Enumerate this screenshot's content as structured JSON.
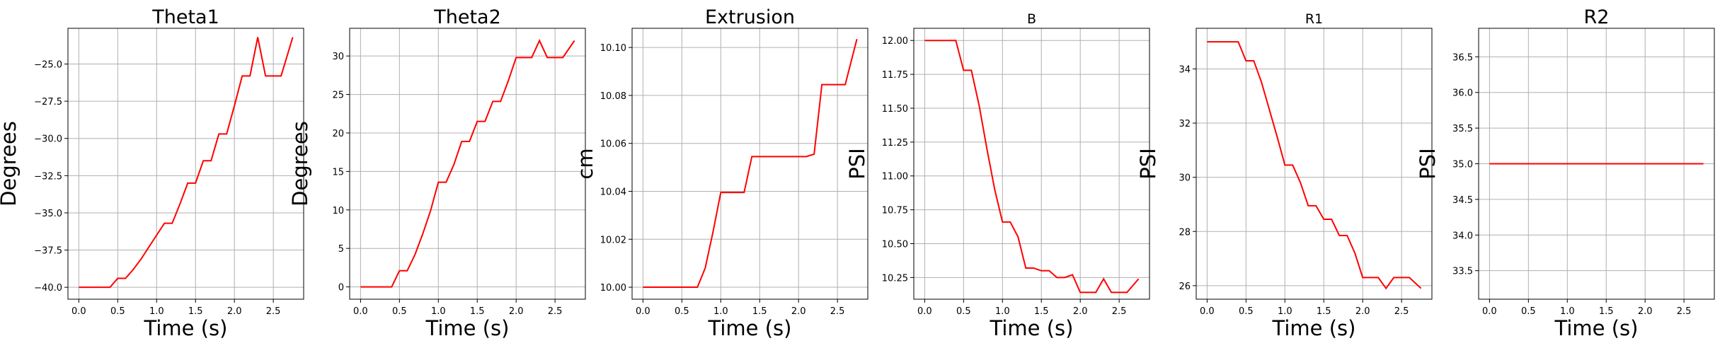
{
  "chart_data": [
    {
      "type": "line",
      "title": "Theta1",
      "xlabel": "Time (s)",
      "ylabel": "Degrees",
      "xlim": [
        -0.14,
        2.89
      ],
      "ylim": [
        -40.8,
        -22.6
      ],
      "xticks": [
        0.0,
        0.5,
        1.0,
        1.5,
        2.0,
        2.5
      ],
      "xtick_labels": [
        "0.0",
        "0.5",
        "1.0",
        "1.5",
        "2.0",
        "2.5"
      ],
      "yticks": [
        -40.0,
        -37.5,
        -35.0,
        -32.5,
        -30.0,
        -27.5,
        -25.0
      ],
      "ytick_labels": [
        "−40.0",
        "−37.5",
        "−35.0",
        "−32.5",
        "−30.0",
        "−27.5",
        "−25.0"
      ],
      "grid": true,
      "color": "#ff0000",
      "x": [
        0.0,
        0.1,
        0.2,
        0.3,
        0.4,
        0.5,
        0.6,
        0.7,
        0.8,
        0.9,
        1.0,
        1.1,
        1.2,
        1.3,
        1.4,
        1.5,
        1.6,
        1.7,
        1.8,
        1.9,
        2.0,
        2.1,
        2.2,
        2.3,
        2.4,
        2.5,
        2.6,
        2.75
      ],
      "y": [
        -40.0,
        -40.0,
        -40.0,
        -40.0,
        -40.0,
        -39.4,
        -39.4,
        -38.8,
        -38.1,
        -37.3,
        -36.5,
        -35.7,
        -35.7,
        -34.4,
        -33.0,
        -33.0,
        -31.5,
        -31.5,
        -29.7,
        -29.7,
        -27.8,
        -25.8,
        -25.8,
        -23.2,
        -25.8,
        -25.8,
        -25.8,
        -23.2
      ]
    },
    {
      "type": "line",
      "title": "Theta2",
      "xlabel": "Time (s)",
      "ylabel": "Degrees",
      "xlim": [
        -0.14,
        2.89
      ],
      "ylim": [
        -1.6,
        33.6
      ],
      "xticks": [
        0.0,
        0.5,
        1.0,
        1.5,
        2.0,
        2.5
      ],
      "xtick_labels": [
        "0.0",
        "0.5",
        "1.0",
        "1.5",
        "2.0",
        "2.5"
      ],
      "yticks": [
        0,
        5,
        10,
        15,
        20,
        25,
        30
      ],
      "ytick_labels": [
        "0",
        "5",
        "10",
        "15",
        "20",
        "25",
        "30"
      ],
      "grid": true,
      "color": "#ff0000",
      "x": [
        0.0,
        0.1,
        0.2,
        0.3,
        0.4,
        0.5,
        0.6,
        0.7,
        0.8,
        0.9,
        1.0,
        1.1,
        1.2,
        1.3,
        1.4,
        1.5,
        1.6,
        1.7,
        1.8,
        1.9,
        2.0,
        2.1,
        2.2,
        2.3,
        2.4,
        2.5,
        2.6,
        2.75
      ],
      "y": [
        0.0,
        0.0,
        0.0,
        0.0,
        0.0,
        2.1,
        2.1,
        4.2,
        6.9,
        9.9,
        13.6,
        13.6,
        15.9,
        18.9,
        18.9,
        21.5,
        21.5,
        24.1,
        24.1,
        26.8,
        29.8,
        29.8,
        29.8,
        32.0,
        29.8,
        29.8,
        29.8,
        32.0
      ]
    },
    {
      "type": "line",
      "title": "Extrusion",
      "xlabel": "Time (s)",
      "ylabel": "cm",
      "xlim": [
        -0.14,
        2.89
      ],
      "ylim": [
        9.995,
        10.108
      ],
      "xticks": [
        0.0,
        0.5,
        1.0,
        1.5,
        2.0,
        2.5
      ],
      "xtick_labels": [
        "0.0",
        "0.5",
        "1.0",
        "1.5",
        "2.0",
        "2.5"
      ],
      "yticks": [
        10.0,
        10.02,
        10.04,
        10.06,
        10.08,
        10.1
      ],
      "ytick_labels": [
        "10.00",
        "10.02",
        "10.04",
        "10.06",
        "10.08",
        "10.10"
      ],
      "grid": true,
      "color": "#ff0000",
      "x": [
        0.0,
        0.1,
        0.2,
        0.3,
        0.4,
        0.5,
        0.6,
        0.7,
        0.8,
        0.9,
        1.0,
        1.1,
        1.2,
        1.3,
        1.4,
        1.5,
        1.6,
        1.7,
        1.8,
        1.9,
        2.0,
        2.1,
        2.2,
        2.3,
        2.4,
        2.5,
        2.6,
        2.75
      ],
      "y": [
        10.0,
        10.0,
        10.0,
        10.0,
        10.0,
        10.0,
        10.0,
        10.0,
        10.008,
        10.023,
        10.0395,
        10.0395,
        10.0395,
        10.0395,
        10.0545,
        10.0545,
        10.0545,
        10.0545,
        10.0545,
        10.0545,
        10.0545,
        10.0545,
        10.0555,
        10.0845,
        10.0845,
        10.0845,
        10.0845,
        10.1035
      ]
    },
    {
      "type": "line",
      "title": "B",
      "xlabel": "Time (s)",
      "ylabel": "PSI",
      "xlim": [
        -0.14,
        2.89
      ],
      "ylim": [
        10.09,
        12.09
      ],
      "xticks": [
        0.0,
        0.5,
        1.0,
        1.5,
        2.0,
        2.5
      ],
      "xtick_labels": [
        "0.0",
        "0.5",
        "1.0",
        "1.5",
        "2.0",
        "2.5"
      ],
      "yticks": [
        10.25,
        10.5,
        10.75,
        11.0,
        11.25,
        11.5,
        11.75,
        12.0
      ],
      "ytick_labels": [
        "10.25",
        "10.50",
        "10.75",
        "11.00",
        "11.25",
        "11.50",
        "11.75",
        "12.00"
      ],
      "grid": true,
      "color": "#ff0000",
      "x": [
        0.0,
        0.1,
        0.2,
        0.3,
        0.4,
        0.5,
        0.6,
        0.7,
        0.8,
        0.9,
        1.0,
        1.1,
        1.2,
        1.3,
        1.4,
        1.5,
        1.6,
        1.7,
        1.8,
        1.9,
        2.0,
        2.1,
        2.2,
        2.3,
        2.4,
        2.5,
        2.6,
        2.75
      ],
      "y": [
        12.0,
        12.0,
        12.0,
        12.0,
        12.0,
        11.78,
        11.78,
        11.52,
        11.2,
        10.9,
        10.66,
        10.66,
        10.55,
        10.32,
        10.32,
        10.3,
        10.3,
        10.25,
        10.25,
        10.27,
        10.14,
        10.14,
        10.14,
        10.24,
        10.14,
        10.14,
        10.14,
        10.24
      ]
    },
    {
      "type": "line",
      "title": "R1",
      "xlabel": "Time (s)",
      "ylabel": "PSI",
      "xlim": [
        -0.14,
        2.89
      ],
      "ylim": [
        25.5,
        35.5
      ],
      "xticks": [
        0.0,
        0.5,
        1.0,
        1.5,
        2.0,
        2.5
      ],
      "xtick_labels": [
        "0.0",
        "0.5",
        "1.0",
        "1.5",
        "2.0",
        "2.5"
      ],
      "yticks": [
        26,
        28,
        30,
        32,
        34
      ],
      "ytick_labels": [
        "26",
        "28",
        "30",
        "32",
        "34"
      ],
      "grid": true,
      "color": "#ff0000",
      "x": [
        0.0,
        0.1,
        0.2,
        0.3,
        0.4,
        0.5,
        0.6,
        0.7,
        0.8,
        0.9,
        1.0,
        1.1,
        1.2,
        1.3,
        1.4,
        1.5,
        1.6,
        1.7,
        1.8,
        1.9,
        2.0,
        2.1,
        2.2,
        2.3,
        2.4,
        2.5,
        2.6,
        2.75
      ],
      "y": [
        35.0,
        35.0,
        35.0,
        35.0,
        35.0,
        34.3,
        34.3,
        33.5,
        32.5,
        31.5,
        30.45,
        30.45,
        29.8,
        28.95,
        28.95,
        28.45,
        28.45,
        27.85,
        27.85,
        27.2,
        26.3,
        26.3,
        26.3,
        25.9,
        26.3,
        26.3,
        26.3,
        25.9
      ]
    },
    {
      "type": "line",
      "title": "R2",
      "xlabel": "Time (s)",
      "ylabel": "PSI",
      "xlim": [
        -0.14,
        2.89
      ],
      "ylim": [
        33.1,
        36.9
      ],
      "xticks": [
        0.0,
        0.5,
        1.0,
        1.5,
        2.0,
        2.5
      ],
      "xtick_labels": [
        "0.0",
        "0.5",
        "1.0",
        "1.5",
        "2.0",
        "2.5"
      ],
      "yticks": [
        33.5,
        34.0,
        34.5,
        35.0,
        35.5,
        36.0,
        36.5
      ],
      "ytick_labels": [
        "33.5",
        "34.0",
        "34.5",
        "35.0",
        "35.5",
        "36.0",
        "36.5"
      ],
      "grid": true,
      "color": "#ff0000",
      "x": [
        0.0,
        2.75
      ],
      "y": [
        35.0,
        35.0
      ]
    }
  ]
}
